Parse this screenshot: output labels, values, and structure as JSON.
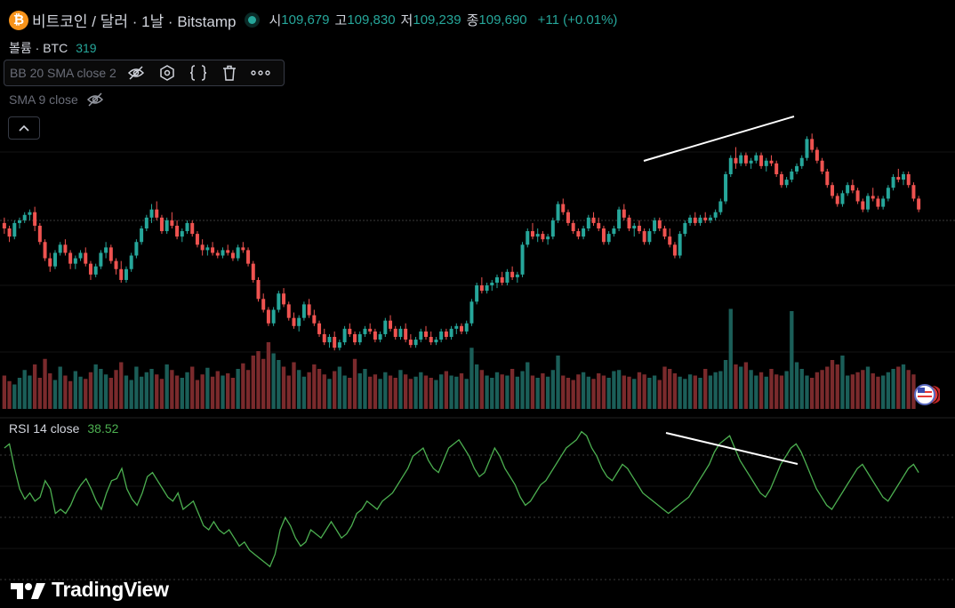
{
  "symbol": {
    "title": "비트코인 / 달러 · 1날 · Bitstamp",
    "icon": "bitcoin-icon",
    "icon_glyph": "₿",
    "status": "market-open-dot"
  },
  "ohlc": {
    "open_label": "시",
    "open": "109,679",
    "high_label": "고",
    "high": "109,830",
    "low_label": "저",
    "low": "109,239",
    "close_label": "종",
    "close": "109,690",
    "change": "+11 (+0.01%)"
  },
  "volume": {
    "label": "볼륨 · BTC",
    "value": "319"
  },
  "indicators": {
    "bb": {
      "label": "BB 20 SMA close 2",
      "toolbar": [
        "eye-hidden-icon",
        "settings-icon",
        "source-code-icon",
        "delete-icon",
        "more-icon"
      ]
    },
    "sma": {
      "label": "SMA 9 close",
      "icon": "eye-hidden-icon"
    }
  },
  "collapse": {
    "icon": "chevron-up-icon"
  },
  "rsi": {
    "label": "RSI 14 close",
    "value": "38.52"
  },
  "brand": {
    "name": "TradingView",
    "icon": "tradingview-logo-icon"
  },
  "colors": {
    "up": "#26a69a",
    "down": "#ef5350",
    "rsi": "#4caf50",
    "background": "#000000"
  },
  "chart_data": {
    "type": "candlestick",
    "candles": [
      [
        62,
        64,
        58,
        60
      ],
      [
        60,
        61,
        55,
        57
      ],
      [
        57,
        63,
        56,
        62
      ],
      [
        62,
        64,
        60,
        63
      ],
      [
        63,
        66,
        62,
        65
      ],
      [
        65,
        67,
        63,
        66
      ],
      [
        66,
        68,
        59,
        61
      ],
      [
        61,
        62,
        54,
        55
      ],
      [
        55,
        56,
        48,
        49
      ],
      [
        49,
        51,
        44,
        46
      ],
      [
        46,
        52,
        45,
        51
      ],
      [
        51,
        55,
        50,
        54
      ],
      [
        54,
        56,
        50,
        51
      ],
      [
        51,
        52,
        45,
        47
      ],
      [
        47,
        50,
        45,
        49
      ],
      [
        49,
        52,
        48,
        51
      ],
      [
        51,
        53,
        46,
        47
      ],
      [
        47,
        48,
        41,
        43
      ],
      [
        43,
        47,
        42,
        46
      ],
      [
        46,
        52,
        45,
        51
      ],
      [
        51,
        55,
        49,
        53
      ],
      [
        53,
        54,
        47,
        48
      ],
      [
        48,
        49,
        43,
        45
      ],
      [
        45,
        48,
        40,
        41
      ],
      [
        41,
        46,
        40,
        45
      ],
      [
        45,
        51,
        44,
        50
      ],
      [
        50,
        56,
        49,
        55
      ],
      [
        55,
        61,
        54,
        60
      ],
      [
        60,
        65,
        59,
        64
      ],
      [
        64,
        69,
        62,
        67
      ],
      [
        67,
        70,
        63,
        64
      ],
      [
        64,
        65,
        58,
        59
      ],
      [
        59,
        64,
        58,
        63
      ],
      [
        63,
        66,
        60,
        61
      ],
      [
        61,
        63,
        56,
        57
      ],
      [
        57,
        60,
        55,
        59
      ],
      [
        59,
        63,
        58,
        62
      ],
      [
        62,
        63,
        57,
        58
      ],
      [
        58,
        59,
        53,
        54
      ],
      [
        54,
        56,
        50,
        52
      ],
      [
        52,
        54,
        50,
        53
      ],
      [
        53,
        55,
        50,
        51
      ],
      [
        51,
        52,
        49,
        50
      ],
      [
        50,
        53,
        49,
        52
      ],
      [
        52,
        54,
        50,
        51
      ],
      [
        51,
        52,
        48,
        49
      ],
      [
        49,
        54,
        48,
        53
      ],
      [
        53,
        55,
        51,
        52
      ],
      [
        52,
        53,
        46,
        47
      ],
      [
        47,
        48,
        40,
        41
      ],
      [
        41,
        42,
        33,
        34
      ],
      [
        34,
        36,
        29,
        30
      ],
      [
        30,
        31,
        24,
        25
      ],
      [
        25,
        31,
        24,
        30
      ],
      [
        30,
        37,
        29,
        36
      ],
      [
        36,
        38,
        31,
        32
      ],
      [
        32,
        33,
        26,
        27
      ],
      [
        27,
        29,
        23,
        24
      ],
      [
        24,
        28,
        22,
        27
      ],
      [
        27,
        33,
        26,
        32
      ],
      [
        32,
        34,
        27,
        28
      ],
      [
        28,
        30,
        24,
        25
      ],
      [
        25,
        26,
        20,
        21
      ],
      [
        21,
        23,
        17,
        18
      ],
      [
        18,
        21,
        16,
        20
      ],
      [
        20,
        22,
        15,
        16
      ],
      [
        16,
        19,
        15,
        18
      ],
      [
        18,
        24,
        17,
        23
      ],
      [
        23,
        25,
        20,
        21
      ],
      [
        21,
        22,
        17,
        18
      ],
      [
        18,
        22,
        17,
        21
      ],
      [
        21,
        24,
        20,
        23
      ],
      [
        23,
        25,
        21,
        22
      ],
      [
        22,
        23,
        18,
        19
      ],
      [
        19,
        22,
        18,
        21
      ],
      [
        21,
        27,
        20,
        26
      ],
      [
        26,
        28,
        22,
        23
      ],
      [
        23,
        24,
        19,
        20
      ],
      [
        20,
        24,
        19,
        23
      ],
      [
        23,
        25,
        18,
        19
      ],
      [
        19,
        21,
        16,
        17
      ],
      [
        17,
        20,
        16,
        19
      ],
      [
        19,
        23,
        18,
        22
      ],
      [
        22,
        24,
        19,
        20
      ],
      [
        20,
        22,
        17,
        18
      ],
      [
        18,
        20,
        17,
        19
      ],
      [
        19,
        23,
        18,
        22
      ],
      [
        22,
        23,
        19,
        20
      ],
      [
        20,
        24,
        19,
        23
      ],
      [
        23,
        25,
        21,
        24
      ],
      [
        24,
        25,
        21,
        22
      ],
      [
        22,
        26,
        21,
        25
      ],
      [
        25,
        34,
        24,
        33
      ],
      [
        33,
        40,
        32,
        39
      ],
      [
        39,
        42,
        36,
        37
      ],
      [
        37,
        40,
        36,
        39
      ],
      [
        39,
        41,
        37,
        40
      ],
      [
        40,
        43,
        38,
        42
      ],
      [
        42,
        44,
        39,
        40
      ],
      [
        40,
        45,
        39,
        44
      ],
      [
        44,
        46,
        41,
        42
      ],
      [
        42,
        44,
        40,
        43
      ],
      [
        43,
        55,
        42,
        54
      ],
      [
        54,
        60,
        53,
        59
      ],
      [
        59,
        62,
        56,
        57
      ],
      [
        57,
        60,
        55,
        58
      ],
      [
        58,
        59,
        55,
        56
      ],
      [
        56,
        58,
        54,
        57
      ],
      [
        57,
        64,
        56,
        63
      ],
      [
        63,
        70,
        62,
        69
      ],
      [
        69,
        71,
        65,
        66
      ],
      [
        66,
        67,
        61,
        62
      ],
      [
        62,
        63,
        58,
        59
      ],
      [
        59,
        60,
        56,
        57
      ],
      [
        57,
        61,
        56,
        60
      ],
      [
        60,
        65,
        59,
        64
      ],
      [
        64,
        66,
        61,
        62
      ],
      [
        62,
        64,
        59,
        60
      ],
      [
        60,
        61,
        54,
        55
      ],
      [
        55,
        59,
        54,
        58
      ],
      [
        58,
        61,
        57,
        60
      ],
      [
        60,
        68,
        59,
        67
      ],
      [
        67,
        69,
        63,
        64
      ],
      [
        64,
        65,
        59,
        60
      ],
      [
        60,
        62,
        57,
        61
      ],
      [
        61,
        63,
        58,
        59
      ],
      [
        59,
        60,
        54,
        55
      ],
      [
        55,
        60,
        54,
        59
      ],
      [
        59,
        64,
        58,
        63
      ],
      [
        63,
        64,
        59,
        60
      ],
      [
        60,
        61,
        56,
        57
      ],
      [
        57,
        60,
        53,
        54
      ],
      [
        54,
        55,
        49,
        50
      ],
      [
        50,
        59,
        49,
        58
      ],
      [
        58,
        63,
        57,
        62
      ],
      [
        62,
        65,
        61,
        64
      ],
      [
        64,
        66,
        61,
        62
      ],
      [
        62,
        65,
        61,
        64
      ],
      [
        64,
        66,
        62,
        63
      ],
      [
        63,
        65,
        62,
        64
      ],
      [
        64,
        67,
        63,
        66
      ],
      [
        66,
        71,
        65,
        70
      ],
      [
        70,
        81,
        69,
        80
      ],
      [
        80,
        87,
        79,
        86
      ],
      [
        86,
        90,
        82,
        84
      ],
      [
        84,
        88,
        83,
        87
      ],
      [
        87,
        88,
        83,
        84
      ],
      [
        84,
        86,
        82,
        85
      ],
      [
        85,
        88,
        84,
        87
      ],
      [
        87,
        88,
        82,
        83
      ],
      [
        83,
        86,
        81,
        85
      ],
      [
        85,
        87,
        83,
        84
      ],
      [
        84,
        85,
        79,
        80
      ],
      [
        80,
        81,
        75,
        76
      ],
      [
        76,
        79,
        75,
        78
      ],
      [
        78,
        82,
        77,
        81
      ],
      [
        81,
        84,
        80,
        83
      ],
      [
        83,
        87,
        82,
        86
      ],
      [
        86,
        94,
        85,
        93
      ],
      [
        93,
        95,
        88,
        89
      ],
      [
        89,
        90,
        84,
        85
      ],
      [
        85,
        86,
        80,
        81
      ],
      [
        81,
        82,
        75,
        76
      ],
      [
        76,
        77,
        71,
        72
      ],
      [
        72,
        73,
        68,
        69
      ],
      [
        69,
        74,
        68,
        73
      ],
      [
        73,
        77,
        72,
        76
      ],
      [
        76,
        78,
        73,
        74
      ],
      [
        74,
        75,
        69,
        70
      ],
      [
        70,
        71,
        66,
        67
      ],
      [
        67,
        73,
        66,
        72
      ],
      [
        72,
        75,
        70,
        71
      ],
      [
        71,
        72,
        67,
        68
      ],
      [
        68,
        72,
        67,
        71
      ],
      [
        71,
        76,
        70,
        75
      ],
      [
        75,
        80,
        74,
        79
      ],
      [
        79,
        82,
        77,
        78
      ],
      [
        78,
        81,
        76,
        80
      ],
      [
        80,
        81,
        75,
        76
      ],
      [
        76,
        77,
        70,
        71
      ],
      [
        71,
        72,
        66,
        67
      ]
    ],
    "volume": [
      30,
      25,
      22,
      28,
      35,
      30,
      40,
      28,
      45,
      32,
      26,
      38,
      30,
      25,
      34,
      29,
      27,
      33,
      40,
      36,
      31,
      28,
      35,
      42,
      30,
      26,
      38,
      29,
      33,
      36,
      31,
      27,
      40,
      35,
      30,
      28,
      33,
      38,
      26,
      31,
      37,
      29,
      34,
      30,
      32,
      28,
      36,
      41,
      35,
      48,
      52,
      45,
      60,
      50,
      44,
      38,
      30,
      42,
      35,
      29,
      33,
      40,
      36,
      31,
      27,
      34,
      38,
      30,
      28,
      45,
      32,
      36,
      29,
      31,
      27,
      33,
      30,
      28,
      35,
      31,
      27,
      29,
      33,
      30,
      28,
      26,
      31,
      34,
      30,
      29,
      32,
      27,
      55,
      40,
      35,
      30,
      28,
      33,
      31,
      30,
      36,
      29,
      34,
      42,
      30,
      28,
      32,
      29,
      35,
      48,
      30,
      28,
      26,
      31,
      33,
      29,
      27,
      32,
      30,
      28,
      34,
      35,
      30,
      29,
      27,
      33,
      31,
      28,
      30,
      26,
      38,
      36,
      32,
      29,
      27,
      31,
      30,
      28,
      36,
      30,
      33,
      34,
      44,
      90,
      40,
      38,
      42,
      35,
      30,
      33,
      29,
      36,
      31,
      30,
      34,
      88,
      42,
      36,
      30,
      28,
      33,
      35,
      38,
      44,
      40,
      48,
      30,
      31,
      33,
      35,
      38,
      32,
      29,
      30,
      33,
      36,
      38,
      40,
      35,
      31
    ],
    "rsi": [
      70,
      72,
      60,
      50,
      45,
      48,
      44,
      46,
      54,
      50,
      38,
      40,
      38,
      42,
      48,
      52,
      55,
      50,
      44,
      40,
      48,
      54,
      55,
      60,
      50,
      45,
      42,
      48,
      56,
      58,
      54,
      50,
      46,
      44,
      48,
      40,
      42,
      44,
      38,
      32,
      30,
      34,
      30,
      28,
      30,
      26,
      22,
      24,
      20,
      18,
      16,
      14,
      12,
      18,
      30,
      36,
      32,
      26,
      22,
      24,
      30,
      28,
      26,
      30,
      34,
      30,
      26,
      28,
      32,
      38,
      40,
      44,
      42,
      40,
      44,
      46,
      48,
      52,
      56,
      60,
      66,
      68,
      70,
      64,
      60,
      58,
      64,
      70,
      72,
      74,
      70,
      66,
      60,
      56,
      58,
      64,
      70,
      66,
      60,
      56,
      52,
      46,
      42,
      44,
      48,
      52,
      54,
      58,
      62,
      66,
      70,
      72,
      74,
      78,
      76,
      70,
      66,
      60,
      56,
      54,
      58,
      62,
      60,
      56,
      52,
      48,
      46,
      44,
      42,
      40,
      38,
      40,
      42,
      44,
      46,
      50,
      54,
      58,
      62,
      68,
      72,
      74,
      76,
      70,
      64,
      60,
      56,
      52,
      48,
      46,
      50,
      56,
      62,
      66,
      70,
      72,
      68,
      62,
      56,
      50,
      46,
      42,
      40,
      44,
      48,
      52,
      56,
      60,
      62,
      58,
      54,
      50,
      46,
      44,
      48,
      52,
      56,
      60,
      62,
      58
    ],
    "price_trendline": "higher-high",
    "rsi_trendline": "lower-high"
  }
}
